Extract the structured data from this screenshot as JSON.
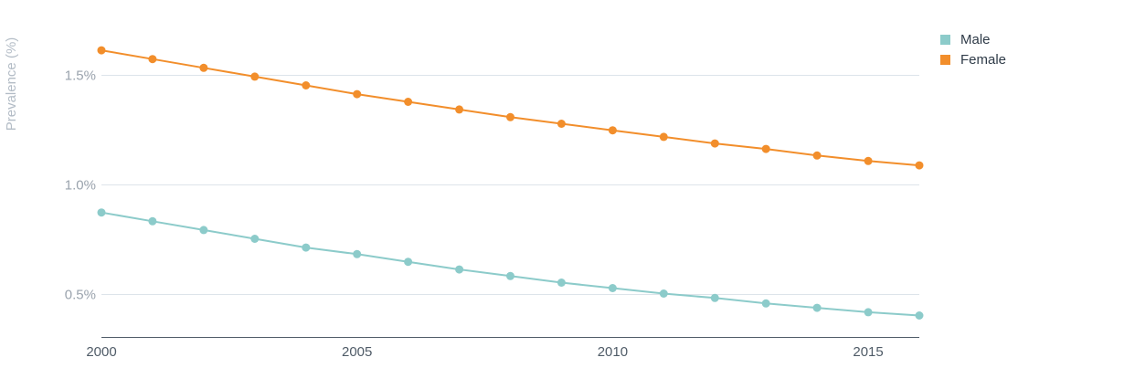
{
  "chart_data": {
    "type": "line",
    "ylabel": "Prevalence (%)",
    "xlabel": "",
    "x": [
      2000,
      2001,
      2002,
      2003,
      2004,
      2005,
      2006,
      2007,
      2008,
      2009,
      2010,
      2011,
      2012,
      2013,
      2014,
      2015,
      2016
    ],
    "xlim": [
      2000,
      2016
    ],
    "ylim": [
      0.3,
      1.7
    ],
    "x_ticks": [
      2000,
      2005,
      2010,
      2015
    ],
    "x_tick_labels": [
      "2000",
      "2005",
      "2010",
      "2015"
    ],
    "y_ticks": [
      0.5,
      1.0,
      1.5
    ],
    "y_tick_labels": [
      "0.5%",
      "1.0%",
      "1.5%"
    ],
    "grid": "horizontal",
    "legend_position": "top-right",
    "series": [
      {
        "name": "Male",
        "color": "#8ccbca",
        "values": [
          0.87,
          0.83,
          0.79,
          0.75,
          0.71,
          0.68,
          0.645,
          0.61,
          0.58,
          0.55,
          0.525,
          0.5,
          0.48,
          0.455,
          0.435,
          0.415,
          0.4
        ]
      },
      {
        "name": "Female",
        "color": "#f28e2b",
        "values": [
          1.61,
          1.57,
          1.53,
          1.49,
          1.45,
          1.41,
          1.375,
          1.34,
          1.305,
          1.275,
          1.245,
          1.215,
          1.185,
          1.16,
          1.13,
          1.105,
          1.085
        ]
      }
    ]
  }
}
